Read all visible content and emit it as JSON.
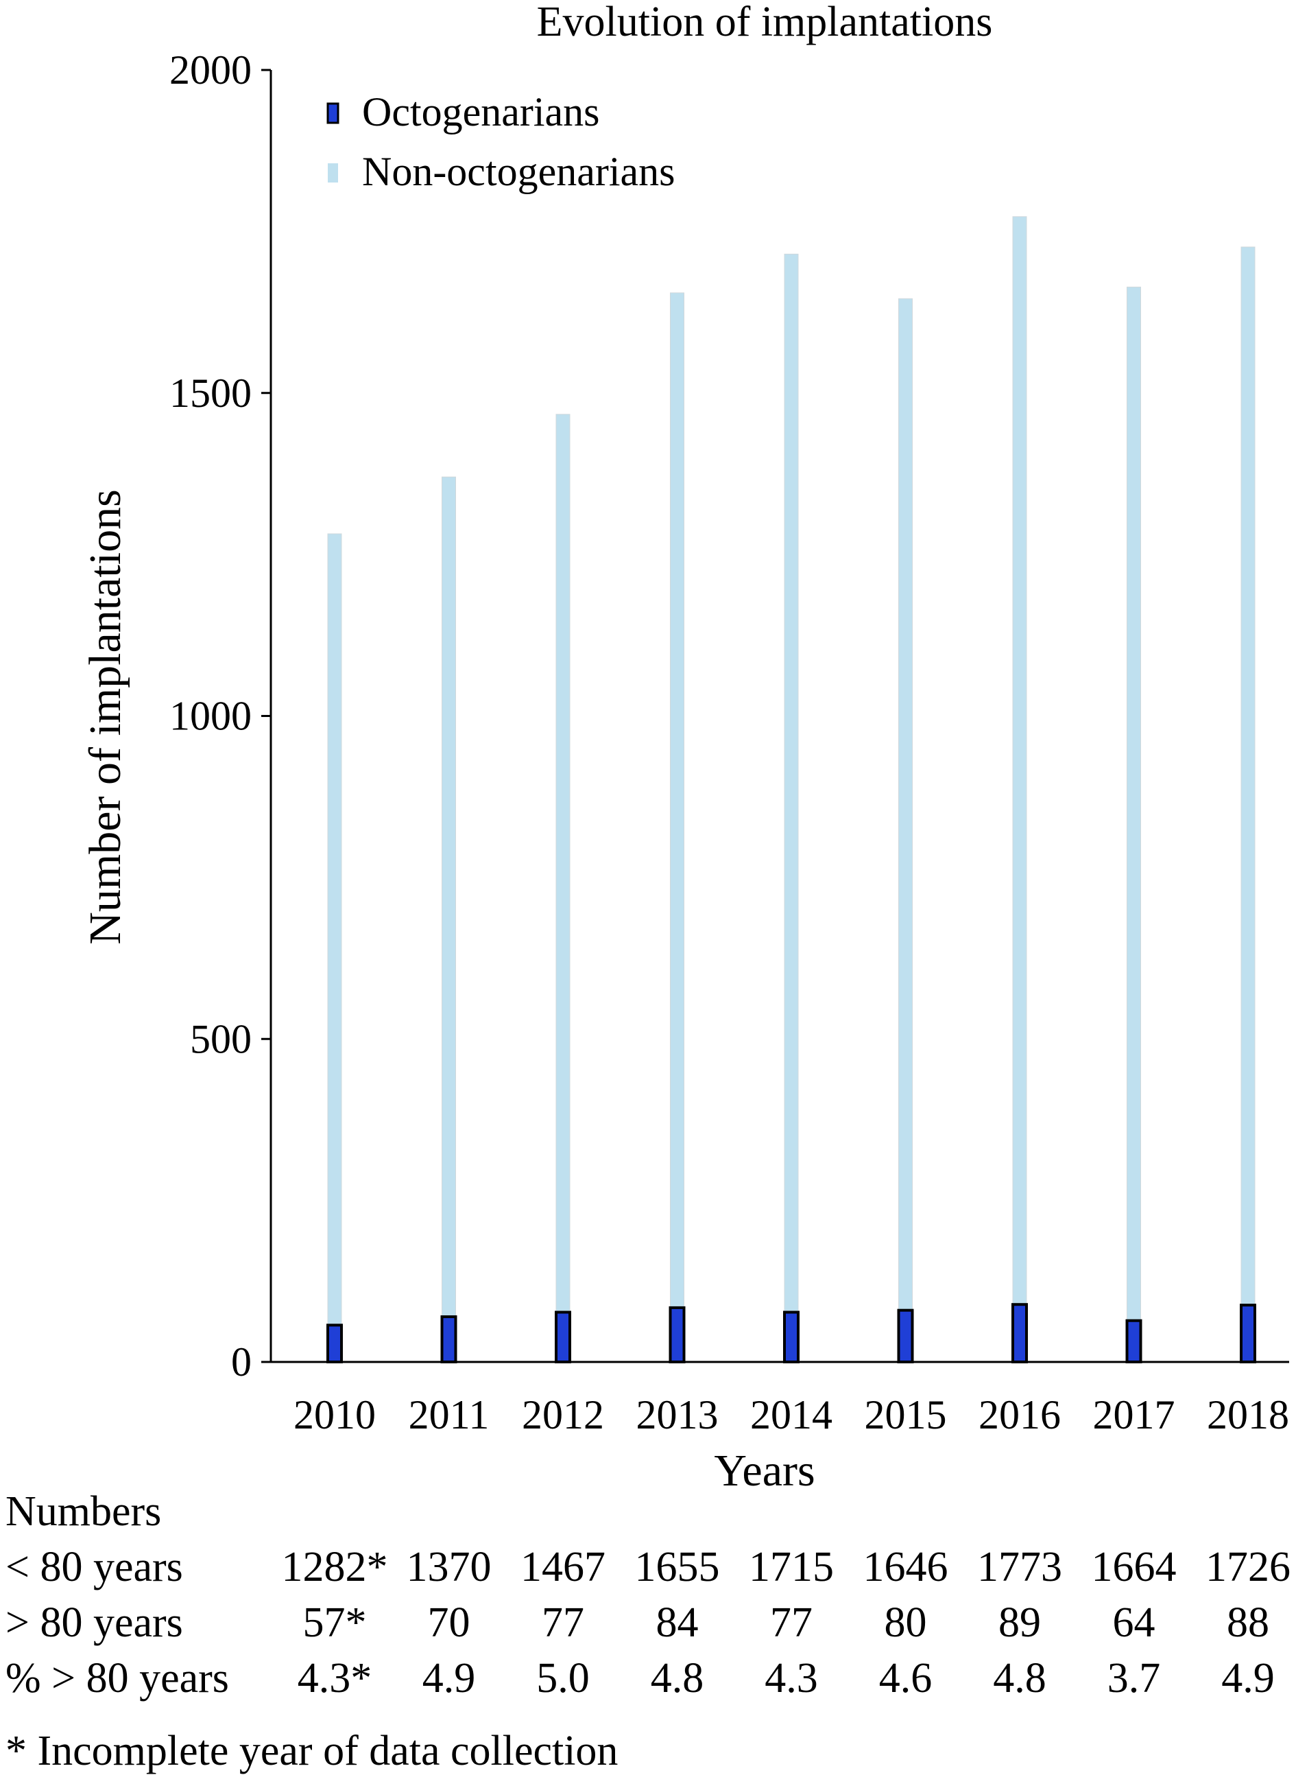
{
  "chart_data": {
    "type": "bar",
    "title": "Evolution of implantations",
    "xlabel": "Years",
    "ylabel": "Number of implantations",
    "ylim": [
      0,
      2000
    ],
    "yticks": [
      0,
      500,
      1000,
      1500,
      2000
    ],
    "grid": false,
    "legend_position": "top-left",
    "categories": [
      "2010",
      "2011",
      "2012",
      "2013",
      "2014",
      "2015",
      "2016",
      "2017",
      "2018"
    ],
    "series": [
      {
        "name": "Non-octogenarians",
        "values": [
          1282,
          1370,
          1467,
          1655,
          1715,
          1646,
          1773,
          1664,
          1726
        ],
        "color": "#bfe0ef"
      },
      {
        "name": "Octogenarians",
        "values": [
          57,
          70,
          77,
          84,
          77,
          80,
          89,
          64,
          88
        ],
        "color": "#1f3fd6"
      }
    ]
  },
  "table": {
    "heading": "Numbers",
    "rows": [
      {
        "label": "< 80 years",
        "cells": [
          "1282*",
          "1370",
          "1467",
          "1655",
          "1715",
          "1646",
          "1773",
          "1664",
          "1726"
        ]
      },
      {
        "label": "> 80 years",
        "cells": [
          "57*",
          "70",
          "77",
          "84",
          "77",
          "80",
          "89",
          "64",
          "88"
        ]
      },
      {
        "label": "% > 80 years",
        "cells": [
          "4.3*",
          "4.9",
          "5.0",
          "4.8",
          "4.3",
          "4.6",
          "4.8",
          "3.7",
          "4.9"
        ]
      }
    ],
    "footnote": "* Incomplete year of data collection"
  }
}
